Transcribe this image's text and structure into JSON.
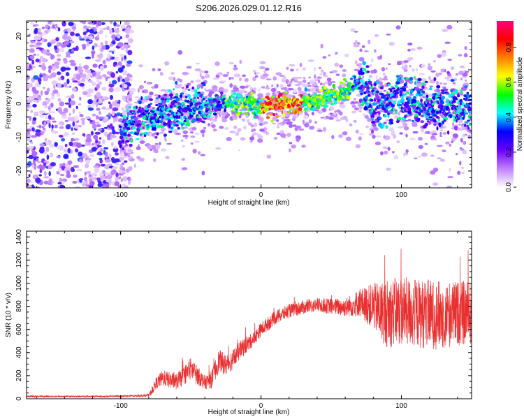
{
  "page_title": "S206.2026.029.01.12.R16",
  "chart_data": [
    {
      "type": "heatmap",
      "title": "S206.2026.029.01.12.R16",
      "xlabel": "Height of straight line (km)",
      "ylabel": "Frequency (Hz)",
      "xlim": [
        -167,
        150
      ],
      "ylim": [
        -25,
        24.5
      ],
      "xticks": [
        -100,
        0,
        100
      ],
      "yticks": [
        -20,
        -10,
        0,
        10,
        20
      ],
      "colorbar": {
        "label": "Normalized spectral amplitude",
        "range": [
          0,
          0.95
        ],
        "ticks": [
          0.0,
          0.2,
          0.4,
          0.6,
          0.8
        ],
        "colors": [
          "#ffffff",
          "#c080ff",
          "#6a00ff",
          "#0000ff",
          "#00ffff",
          "#00ff00",
          "#ffff00",
          "#ff8000",
          "#ff0000",
          "#ff0080"
        ]
      },
      "ridge": {
        "description_points_x": [
          -100,
          -90,
          -80,
          -70,
          -60,
          -50,
          -40,
          -30,
          -20,
          -10,
          0,
          10,
          20,
          30,
          40,
          50,
          60,
          65,
          68,
          72,
          75,
          80,
          90,
          100,
          110,
          120,
          130,
          140,
          150
        ],
        "frequency_hz": [
          -10,
          -5,
          -4,
          -3,
          -2,
          -1.5,
          -1,
          0,
          0,
          -0.5,
          -1,
          -0.5,
          0,
          0,
          1,
          2,
          3,
          5,
          7,
          5,
          2,
          0,
          0,
          2,
          0,
          -1,
          -1,
          -1,
          -2
        ],
        "peak_amplitude_x_range": [
          0,
          30
        ]
      }
    },
    {
      "type": "line",
      "xlabel": "Height of straight line (km)",
      "ylabel": "SNR (10 * v/v)",
      "xlim": [
        -167,
        150
      ],
      "ylim": [
        0,
        1450
      ],
      "xticks": [
        -100,
        0,
        100
      ],
      "yticks": [
        0,
        200,
        400,
        600,
        800,
        1000,
        1200,
        1400
      ],
      "series": [
        {
          "name": "SNR",
          "color": "#e83030",
          "x": [
            -167,
            -150,
            -130,
            -110,
            -90,
            -80,
            -78,
            -75,
            -70,
            -65,
            -60,
            -55,
            -50,
            -45,
            -40,
            -35,
            -30,
            -25,
            -20,
            -15,
            -10,
            -5,
            0,
            5,
            10,
            20,
            30,
            40,
            50,
            60,
            70,
            80,
            85,
            90,
            100,
            110,
            120,
            130,
            140,
            150
          ],
          "mean": [
            20,
            20,
            20,
            20,
            25,
            30,
            60,
            130,
            180,
            160,
            150,
            200,
            260,
            200,
            140,
            170,
            330,
            290,
            340,
            420,
            470,
            520,
            600,
            650,
            700,
            760,
            790,
            810,
            800,
            790,
            830,
            800,
            760,
            740,
            760,
            740,
            730,
            720,
            740,
            740
          ],
          "spread": [
            8,
            8,
            8,
            8,
            10,
            12,
            30,
            50,
            70,
            70,
            70,
            80,
            100,
            80,
            60,
            80,
            100,
            90,
            90,
            80,
            70,
            60,
            60,
            60,
            60,
            60,
            60,
            60,
            70,
            80,
            120,
            200,
            260,
            300,
            300,
            300,
            300,
            300,
            280,
            280
          ]
        }
      ]
    }
  ]
}
